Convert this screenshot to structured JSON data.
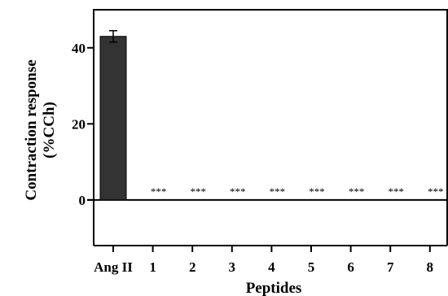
{
  "chart_data": {
    "type": "bar",
    "categories": [
      "Ang II",
      "1",
      "2",
      "3",
      "4",
      "5",
      "6",
      "7",
      "8"
    ],
    "values": [
      43,
      0,
      0,
      0,
      0,
      0,
      0,
      0,
      0
    ],
    "errors": [
      1.5,
      0,
      0,
      0,
      0,
      0,
      0,
      0,
      0
    ],
    "annotations": [
      "",
      "***",
      "***",
      "***",
      "***",
      "***",
      "***",
      "***",
      "***"
    ],
    "xlabel": "Peptides",
    "ylabel_lines": [
      "Contraction response",
      "(%CCh)"
    ],
    "yticks": [
      0,
      20,
      40
    ],
    "ylim": [
      -12,
      50
    ],
    "grid": false,
    "bar_color": "#333333"
  }
}
